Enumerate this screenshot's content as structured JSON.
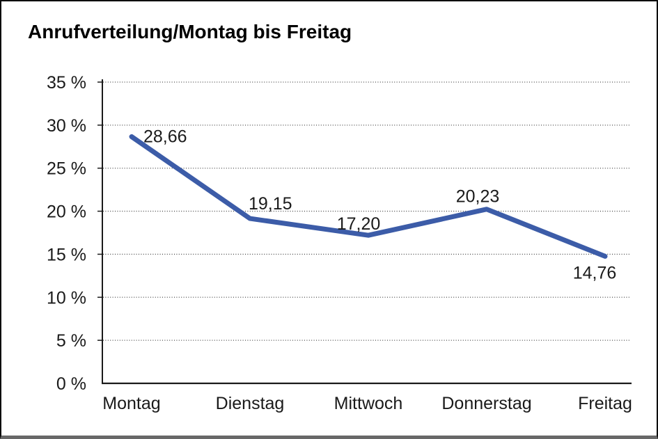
{
  "title": "Anrufverteilung/Montag bis Freitag",
  "colors": {
    "line": "#3C5CA8",
    "text": "#1a1a1a",
    "axis": "#1a1a1a",
    "grid": "#4a4a4a",
    "background": "#ffffff",
    "frame_border": "#0b0b0b",
    "frame_bottom": "#686868"
  },
  "chart_data": {
    "type": "line",
    "title": "Anrufverteilung/Montag bis Freitag",
    "categories": [
      "Montag",
      "Dienstag",
      "Mittwoch",
      "Donnerstag",
      "Freitag"
    ],
    "values": [
      28.66,
      19.15,
      17.2,
      20.23,
      14.76
    ],
    "value_labels": [
      "28,66",
      "19,15",
      "17,20",
      "20,23",
      "14,76"
    ],
    "series_name": "Anrufverteilung",
    "xlabel": "",
    "ylabel": "",
    "ylim": [
      0,
      35
    ],
    "y_tick_step": 5,
    "y_tick_labels": [
      "0 %",
      "5 %",
      "10 %",
      "15 %",
      "20 %",
      "25 %",
      "30 %",
      "35 %"
    ],
    "grid": "horizontal-dotted",
    "legend": "none",
    "line_color": "#3C5CA8",
    "decimal_separator": ","
  }
}
